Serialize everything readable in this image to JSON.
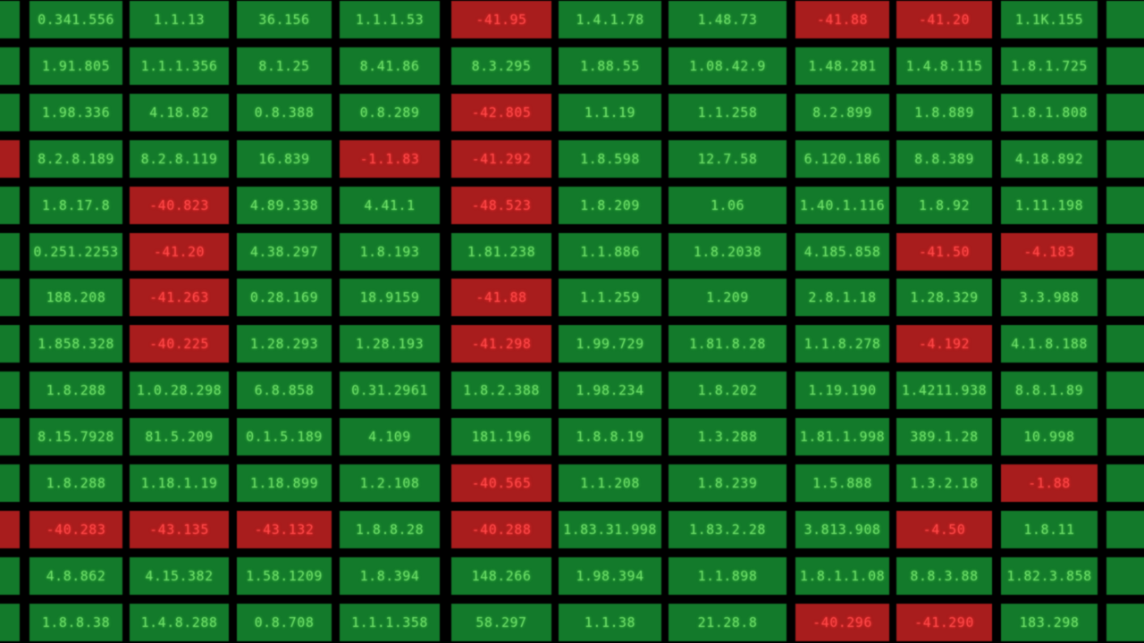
{
  "board": {
    "rows": [
      {
        "left_edge": "green",
        "cells": [
          {
            "text": "0.341.556",
            "color": "green"
          },
          {
            "text": "1.1.13",
            "color": "green"
          },
          {
            "text": "36.156",
            "color": "green"
          },
          {
            "text": "1.1.1.53",
            "color": "green"
          },
          {
            "text": "-41.95",
            "color": "red"
          },
          {
            "text": "1.4.1.78",
            "color": "green"
          },
          {
            "text": "1.48.73",
            "color": "green"
          },
          {
            "text": "-41.88",
            "color": "red"
          },
          {
            "text": "-41.20",
            "color": "red"
          },
          {
            "text": "1.1K.155",
            "color": "green"
          }
        ]
      },
      {
        "left_edge": "green",
        "cells": [
          {
            "text": "1.91.805",
            "color": "green"
          },
          {
            "text": "1.1.1.356",
            "color": "green"
          },
          {
            "text": "8.1.25",
            "color": "green"
          },
          {
            "text": "8.41.86",
            "color": "green"
          },
          {
            "text": "8.3.295",
            "color": "green"
          },
          {
            "text": "1.88.55",
            "color": "green"
          },
          {
            "text": "1.08.42.9",
            "color": "green"
          },
          {
            "text": "1.48.281",
            "color": "green"
          },
          {
            "text": "1.4.8.115",
            "color": "green"
          },
          {
            "text": "1.8.1.725",
            "color": "green"
          }
        ]
      },
      {
        "left_edge": "green",
        "cells": [
          {
            "text": "1.98.336",
            "color": "green"
          },
          {
            "text": "4.18.82",
            "color": "green"
          },
          {
            "text": "0.8.388",
            "color": "green"
          },
          {
            "text": "0.8.289",
            "color": "green"
          },
          {
            "text": "-42.805",
            "color": "red"
          },
          {
            "text": "1.1.19",
            "color": "green"
          },
          {
            "text": "1.1.258",
            "color": "green"
          },
          {
            "text": "8.2.899",
            "color": "green"
          },
          {
            "text": "1.8.889",
            "color": "green"
          },
          {
            "text": "1.8.1.808",
            "color": "green"
          }
        ]
      },
      {
        "left_edge": "red",
        "cells": [
          {
            "text": "8.2.8.189",
            "color": "green"
          },
          {
            "text": "8.2.8.119",
            "color": "green"
          },
          {
            "text": "16.839",
            "color": "green"
          },
          {
            "text": "-1.1.83",
            "color": "red"
          },
          {
            "text": "-41.292",
            "color": "red"
          },
          {
            "text": "1.8.598",
            "color": "green"
          },
          {
            "text": "12.7.58",
            "color": "green"
          },
          {
            "text": "6.120.186",
            "color": "green"
          },
          {
            "text": "8.8.389",
            "color": "green"
          },
          {
            "text": "4.18.892",
            "color": "green"
          }
        ]
      },
      {
        "left_edge": "green",
        "cells": [
          {
            "text": "1.8.17.8",
            "color": "green"
          },
          {
            "text": "-40.823",
            "color": "red"
          },
          {
            "text": "4.89.338",
            "color": "green"
          },
          {
            "text": "4.41.1",
            "color": "green"
          },
          {
            "text": "-48.523",
            "color": "red"
          },
          {
            "text": "1.8.209",
            "color": "green"
          },
          {
            "text": "1.06",
            "color": "green"
          },
          {
            "text": "1.40.1.116",
            "color": "green"
          },
          {
            "text": "1.8.92",
            "color": "green"
          },
          {
            "text": "1.11.198",
            "color": "green"
          }
        ]
      },
      {
        "left_edge": "green",
        "cells": [
          {
            "text": "0.251.2253",
            "color": "green"
          },
          {
            "text": "-41.20",
            "color": "red"
          },
          {
            "text": "4.38.297",
            "color": "green"
          },
          {
            "text": "1.8.193",
            "color": "green"
          },
          {
            "text": "1.81.238",
            "color": "green"
          },
          {
            "text": "1.1.886",
            "color": "green"
          },
          {
            "text": "1.8.2038",
            "color": "green"
          },
          {
            "text": "4.185.858",
            "color": "green"
          },
          {
            "text": "-41.50",
            "color": "red"
          },
          {
            "text": "-4.183",
            "color": "red"
          }
        ]
      },
      {
        "left_edge": "green",
        "cells": [
          {
            "text": "188.208",
            "color": "green"
          },
          {
            "text": "-41.263",
            "color": "red"
          },
          {
            "text": "0.28.169",
            "color": "green"
          },
          {
            "text": "18.9159",
            "color": "green"
          },
          {
            "text": "-41.88",
            "color": "red"
          },
          {
            "text": "1.1.259",
            "color": "green"
          },
          {
            "text": "1.209",
            "color": "green"
          },
          {
            "text": "2.8.1.18",
            "color": "green"
          },
          {
            "text": "1.28.329",
            "color": "green"
          },
          {
            "text": "3.3.988",
            "color": "green"
          }
        ]
      },
      {
        "left_edge": "green",
        "cells": [
          {
            "text": "1.858.328",
            "color": "green"
          },
          {
            "text": "-40.225",
            "color": "red"
          },
          {
            "text": "1.28.293",
            "color": "green"
          },
          {
            "text": "1.28.193",
            "color": "green"
          },
          {
            "text": "-41.298",
            "color": "red"
          },
          {
            "text": "1.99.729",
            "color": "green"
          },
          {
            "text": "1.81.8.28",
            "color": "green"
          },
          {
            "text": "1.1.8.278",
            "color": "green"
          },
          {
            "text": "-4.192",
            "color": "red"
          },
          {
            "text": "4.1.8.188",
            "color": "green"
          }
        ]
      },
      {
        "left_edge": "green",
        "cells": [
          {
            "text": "1.8.288",
            "color": "green"
          },
          {
            "text": "1.0.28.298",
            "color": "green"
          },
          {
            "text": "6.8.858",
            "color": "green"
          },
          {
            "text": "0.31.2961",
            "color": "green"
          },
          {
            "text": "1.8.2.388",
            "color": "green"
          },
          {
            "text": "1.98.234",
            "color": "green"
          },
          {
            "text": "1.8.202",
            "color": "green"
          },
          {
            "text": "1.19.190",
            "color": "green"
          },
          {
            "text": "1.4211.938",
            "color": "green"
          },
          {
            "text": "8.8.1.89",
            "color": "green"
          }
        ]
      },
      {
        "left_edge": "green",
        "cells": [
          {
            "text": "8.15.7928",
            "color": "green"
          },
          {
            "text": "81.5.209",
            "color": "green"
          },
          {
            "text": "0.1.5.189",
            "color": "green"
          },
          {
            "text": "4.109",
            "color": "green"
          },
          {
            "text": "181.196",
            "color": "green"
          },
          {
            "text": "1.8.8.19",
            "color": "green"
          },
          {
            "text": "1.3.288",
            "color": "green"
          },
          {
            "text": "1.81.1.998",
            "color": "green"
          },
          {
            "text": "389.1.28",
            "color": "green"
          },
          {
            "text": "10.998",
            "color": "green"
          }
        ]
      },
      {
        "left_edge": "green",
        "cells": [
          {
            "text": "1.8.288",
            "color": "green"
          },
          {
            "text": "1.18.1.19",
            "color": "green"
          },
          {
            "text": "1.18.899",
            "color": "green"
          },
          {
            "text": "1.2.108",
            "color": "green"
          },
          {
            "text": "-40.565",
            "color": "red"
          },
          {
            "text": "1.1.208",
            "color": "green"
          },
          {
            "text": "1.8.239",
            "color": "green"
          },
          {
            "text": "1.5.888",
            "color": "green"
          },
          {
            "text": "1.3.2.18",
            "color": "green"
          },
          {
            "text": "-1.88",
            "color": "red"
          }
        ]
      },
      {
        "left_edge": "red",
        "cells": [
          {
            "text": "-40.283",
            "color": "red"
          },
          {
            "text": "-43.135",
            "color": "red"
          },
          {
            "text": "-43.132",
            "color": "red"
          },
          {
            "text": "1.8.8.28",
            "color": "green"
          },
          {
            "text": "-40.288",
            "color": "red"
          },
          {
            "text": "1.83.31.998",
            "color": "green"
          },
          {
            "text": "1.83.2.28",
            "color": "green"
          },
          {
            "text": "3.813.908",
            "color": "green"
          },
          {
            "text": "-4.50",
            "color": "red"
          },
          {
            "text": "1.8.11",
            "color": "green"
          }
        ]
      },
      {
        "left_edge": "green",
        "cells": [
          {
            "text": "4.8.862",
            "color": "green"
          },
          {
            "text": "4.15.382",
            "color": "green"
          },
          {
            "text": "1.58.1209",
            "color": "green"
          },
          {
            "text": "1.8.394",
            "color": "green"
          },
          {
            "text": "148.266",
            "color": "green"
          },
          {
            "text": "1.98.394",
            "color": "green"
          },
          {
            "text": "1.1.898",
            "color": "green"
          },
          {
            "text": "1.8.1.1.08",
            "color": "green"
          },
          {
            "text": "8.8.3.88",
            "color": "green"
          },
          {
            "text": "1.82.3.858",
            "color": "green"
          }
        ]
      },
      {
        "left_edge": "green",
        "cells": [
          {
            "text": "1.8.8.38",
            "color": "green"
          },
          {
            "text": "1.4.8.288",
            "color": "green"
          },
          {
            "text": "0.8.708",
            "color": "green"
          },
          {
            "text": "1.1.1.358",
            "color": "green"
          },
          {
            "text": "58.297",
            "color": "green"
          },
          {
            "text": "1.1.38",
            "color": "green"
          },
          {
            "text": "21.28.8",
            "color": "green"
          },
          {
            "text": "-40.296",
            "color": "red"
          },
          {
            "text": "-41.290",
            "color": "red"
          },
          {
            "text": "183.298",
            "color": "green"
          }
        ]
      }
    ]
  }
}
